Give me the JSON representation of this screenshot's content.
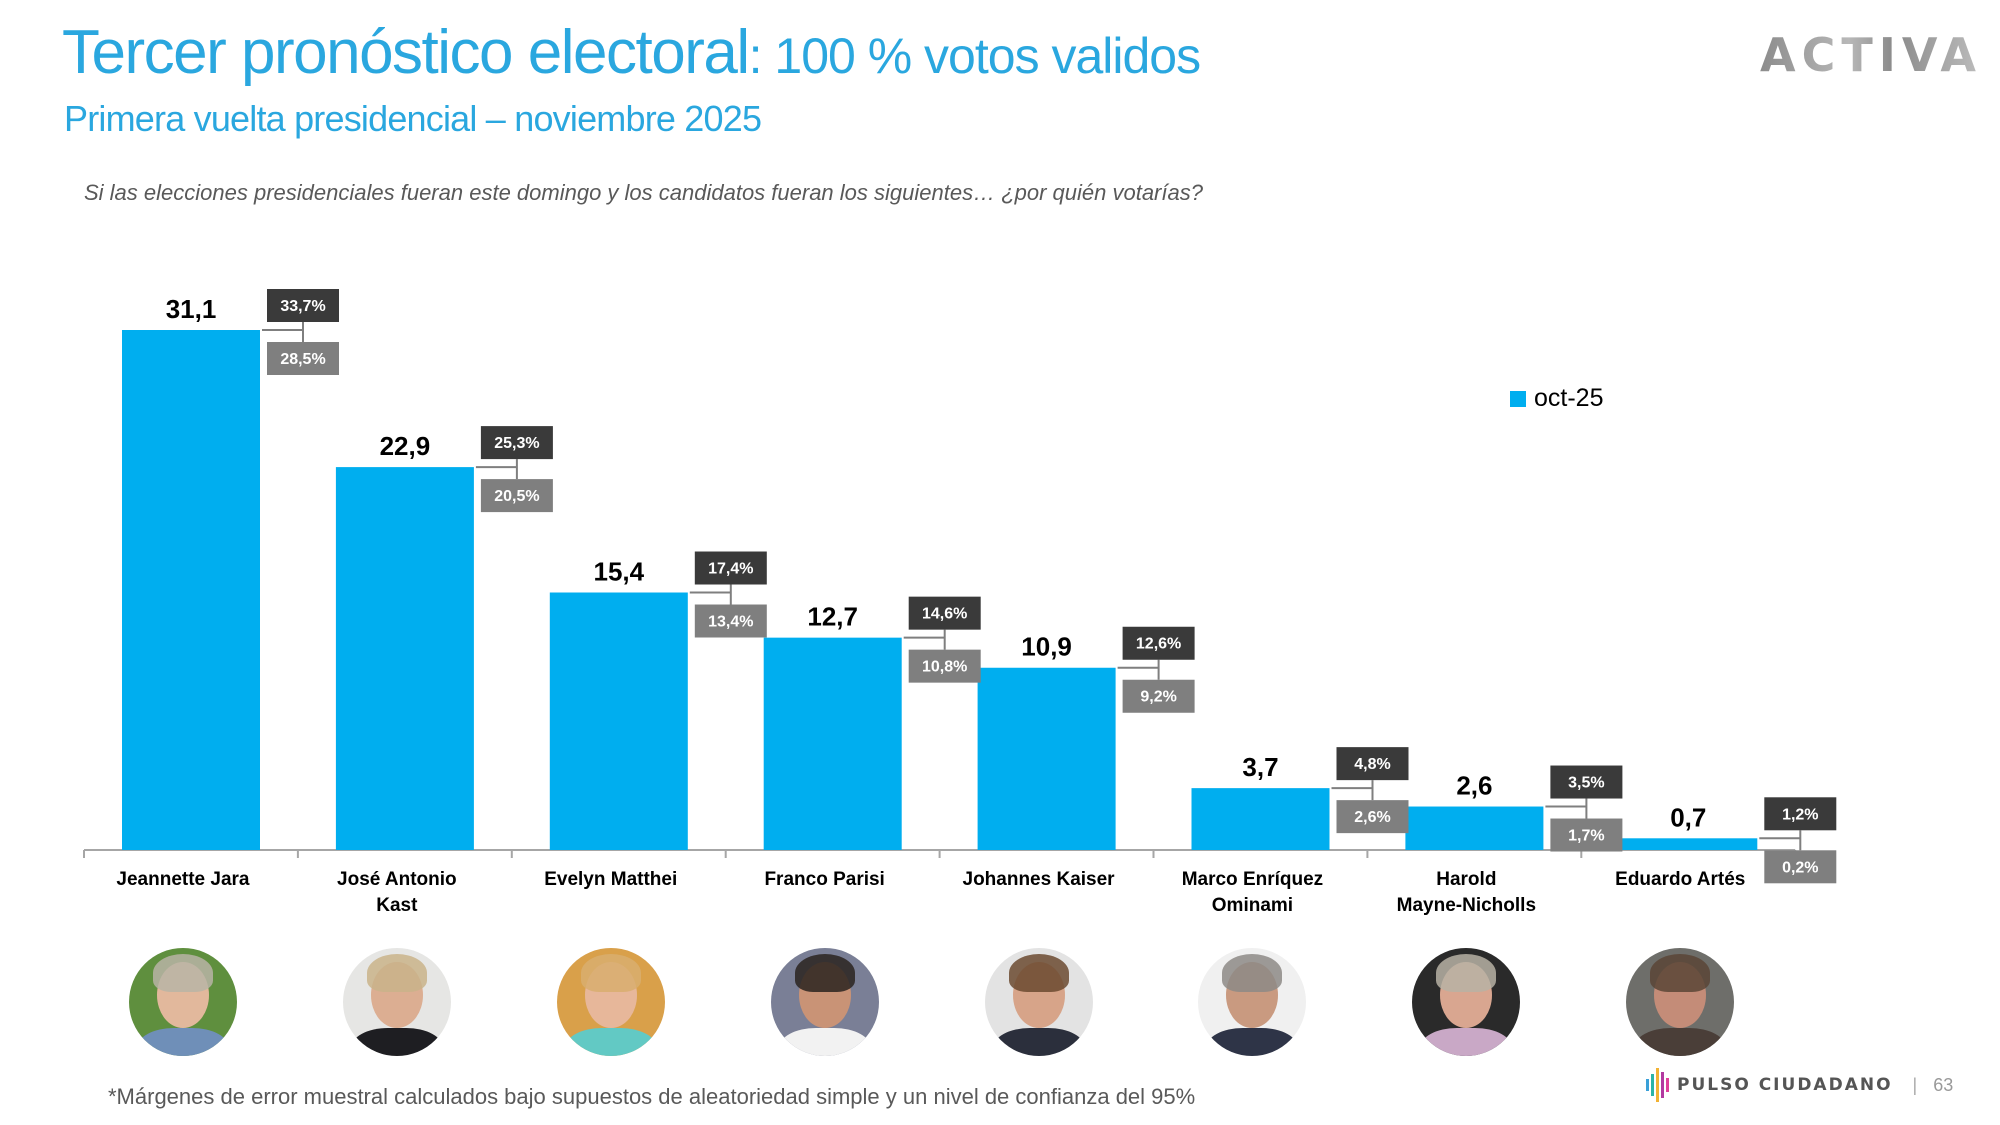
{
  "header": {
    "title_main": "Tercer pronóstico electoral",
    "title_rest": ": 100 % votos validos",
    "subtitle": "Primera vuelta presidencial – noviembre 2025",
    "question": "Si las elecciones presidenciales fueran este domingo y los candidatos fueran los siguientes… ¿por quién votarías?",
    "logo": "ACTIVA"
  },
  "colors": {
    "title": "#2AA7DF",
    "bar": "#00AEEF",
    "upper_box": "#3A3A3A",
    "lower_box": "#7F7F7F",
    "connector": "#7F7F7F",
    "axis": "#A6A6A6"
  },
  "chart_data": {
    "type": "bar",
    "title": "Tercer pronóstico electoral: 100 % votos validos",
    "xlabel": "",
    "ylabel": "",
    "ylim": [
      0,
      31.1
    ],
    "grid": false,
    "legend_position": "top-right",
    "categories": [
      "Jeannette Jara",
      "José Antonio Kast",
      "Evelyn Matthei",
      "Franco Parisi",
      "Johannes Kaiser",
      "Marco Enríquez Ominami",
      "Harold Mayne-Nicholls",
      "Eduardo Artés"
    ],
    "category_label_lines": [
      [
        "Jeannette Jara"
      ],
      [
        "José Antonio",
        "Kast"
      ],
      [
        "Evelyn Matthei"
      ],
      [
        "Franco Parisi"
      ],
      [
        "Johannes Kaiser"
      ],
      [
        "Marco Enríquez",
        "Ominami"
      ],
      [
        "Harold",
        "Mayne-Nicholls"
      ],
      [
        "Eduardo Artés"
      ]
    ],
    "series": [
      {
        "name": "oct-25",
        "values": [
          31.1,
          22.9,
          15.4,
          12.7,
          10.9,
          3.7,
          2.6,
          0.7
        ],
        "value_labels": [
          "31,1",
          "22,9",
          "15,4",
          "12,7",
          "10,9",
          "3,7",
          "2,6",
          "0,7"
        ]
      }
    ],
    "error_margins": {
      "upper": [
        33.7,
        25.3,
        17.4,
        14.6,
        12.6,
        4.8,
        3.5,
        1.2
      ],
      "upper_labels": [
        "33,7%",
        "25,3%",
        "17,4%",
        "14,6%",
        "12,6%",
        "4,8%",
        "3,5%",
        "1,2%"
      ],
      "lower": [
        28.5,
        20.5,
        13.4,
        10.8,
        9.2,
        2.6,
        1.7,
        0.2
      ],
      "lower_labels": [
        "28,5%",
        "20,5%",
        "13,4%",
        "10,8%",
        "9,2%",
        "2,6%",
        "1,7%",
        "0,2%"
      ]
    },
    "legend": [
      "oct-25"
    ]
  },
  "photos": [
    {
      "name": "Jeannette Jara",
      "bg": "#5f8f3e",
      "hair": "#b9b4a6",
      "skin": "#e2b89c",
      "body": "#6f8fb8"
    },
    {
      "name": "José Antonio Kast",
      "bg": "#e6e6e4",
      "hair": "#c9b38a",
      "skin": "#dcae92",
      "body": "#1e1e22"
    },
    {
      "name": "Evelyn Matthei",
      "bg": "#d9a04a",
      "hair": "#d8ae6e",
      "skin": "#e7b79a",
      "body": "#62c9c4"
    },
    {
      "name": "Franco Parisi",
      "bg": "#7a7f96",
      "hair": "#2a2320",
      "skin": "#c99376",
      "body": "#f2f2f2"
    },
    {
      "name": "Johannes Kaiser",
      "bg": "#e3e3e3",
      "hair": "#6b4a30",
      "skin": "#d7a489",
      "body": "#2b2f3c"
    },
    {
      "name": "Marco Enríquez Ominami",
      "bg": "#f0f0f0",
      "hair": "#8d8a86",
      "skin": "#c99a80",
      "body": "#2e3447"
    },
    {
      "name": "Harold Mayne-Nicholls",
      "bg": "#2a2a2a",
      "hair": "#b7b1a5",
      "skin": "#d9a690",
      "body": "#c9a8c6"
    },
    {
      "name": "Eduardo Artés",
      "bg": "#6e6e6a",
      "hair": "#5a4536",
      "skin": "#c48c78",
      "body": "#4a3e38"
    }
  ],
  "footer": {
    "footnote": "*Márgenes de error muestral calculados bajo supuestos de aleatoriedad simple y un nivel de confianza del 95%",
    "brand": "PULSO CIUDADANO",
    "separator": "|",
    "page_number": "63"
  }
}
